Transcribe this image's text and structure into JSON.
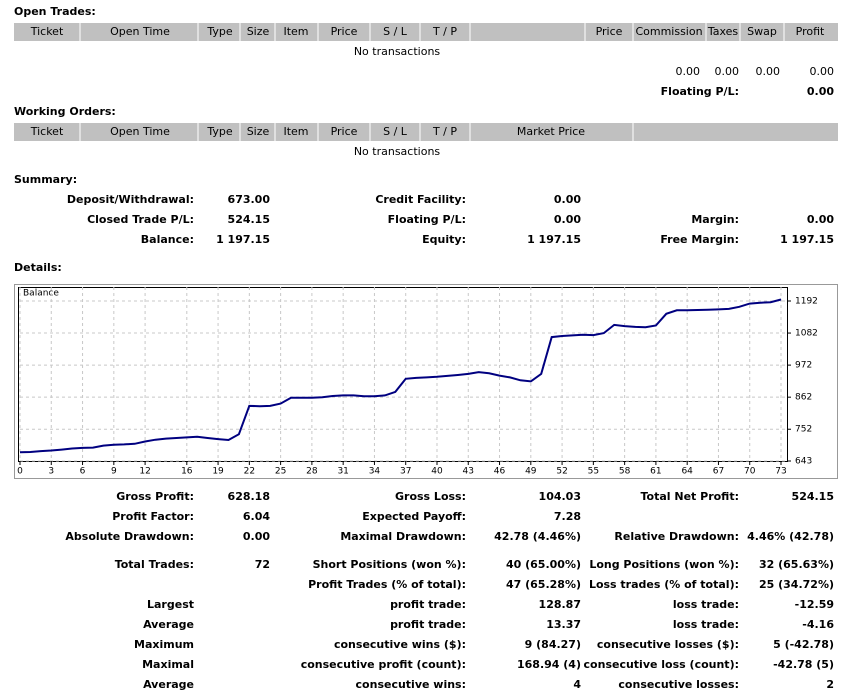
{
  "open_trades": {
    "title": "Open Trades:",
    "columns": [
      "Ticket",
      "Open Time",
      "Type",
      "Size",
      "Item",
      "Price",
      "S / L",
      "T / P",
      "Price",
      "Commission",
      "Taxes",
      "Swap",
      "Profit"
    ],
    "empty": "No transactions",
    "totals": [
      "0.00",
      "0.00",
      "0.00",
      "0.00"
    ],
    "floating_label": "Floating P/L:",
    "floating_value": "0.00"
  },
  "working_orders": {
    "title": "Working Orders:",
    "columns": [
      "Ticket",
      "Open Time",
      "Type",
      "Size",
      "Item",
      "Price",
      "S / L",
      "T / P",
      "Market Price"
    ],
    "empty": "No transactions"
  },
  "summary": {
    "title": "Summary:",
    "rows": [
      {
        "left": {
          "label": "Deposit/Withdrawal:",
          "value": "673.00"
        },
        "middle": {
          "label": "Credit Facility:",
          "value": "0.00"
        }
      },
      {
        "left": {
          "label": "Closed Trade P/L:",
          "value": "524.15"
        },
        "middle": {
          "label": "Floating P/L:",
          "value": "0.00"
        },
        "right": {
          "label": "Margin:",
          "value": "0.00"
        }
      },
      {
        "left": {
          "label": "Balance:",
          "value": "1 197.15"
        },
        "middle": {
          "label": "Equity:",
          "value": "1 197.15"
        },
        "right": {
          "label": "Free Margin:",
          "value": "1 197.15"
        }
      }
    ]
  },
  "details": {
    "title": "Details:",
    "rows": [
      {
        "left": {
          "label": "Gross Profit:",
          "value": "628.18"
        },
        "middle": {
          "label": "Gross Loss:",
          "value": "104.03"
        },
        "right": {
          "label": "Total Net Profit:",
          "value": "524.15"
        }
      },
      {
        "left": {
          "label": "Profit Factor:",
          "value": "6.04"
        },
        "middle": {
          "label": "Expected Payoff:",
          "value": "7.28"
        }
      },
      {
        "left": {
          "label": "Absolute Drawdown:",
          "value": "0.00"
        },
        "middle": {
          "label": "Maximal Drawdown:",
          "value": "42.78 (4.46%)"
        },
        "right": {
          "label": "Relative Drawdown:",
          "value": "4.46% (42.78)"
        }
      },
      {
        "left": {
          "label": "Total Trades:",
          "value": "72"
        },
        "middle": {
          "label": "Short Positions (won %):",
          "value": "40 (65.00%)"
        },
        "right": {
          "label": "Long Positions (won %):",
          "value": "32 (65.63%)"
        }
      },
      {
        "middle": {
          "label": "Profit Trades (% of total):",
          "value": "47 (65.28%)"
        },
        "right": {
          "label": "Loss trades (% of total):",
          "value": "25 (34.72%)"
        }
      },
      {
        "left": {
          "label": "Largest"
        },
        "middle": {
          "label": "profit trade:",
          "value": "128.87"
        },
        "right": {
          "label": "loss trade:",
          "value": "-12.59"
        }
      },
      {
        "left": {
          "label": "Average"
        },
        "middle": {
          "label": "profit trade:",
          "value": "13.37"
        },
        "right": {
          "label": "loss trade:",
          "value": "-4.16"
        }
      },
      {
        "left": {
          "label": "Maximum"
        },
        "middle": {
          "label": "consecutive wins ($):",
          "value": "9 (84.27)"
        },
        "right": {
          "label": "consecutive losses ($):",
          "value": "5 (-42.78)"
        }
      },
      {
        "left": {
          "label": "Maximal"
        },
        "middle": {
          "label": "consecutive profit (count):",
          "value": "168.94 (4)"
        },
        "right": {
          "label": "consecutive loss (count):",
          "value": "-42.78 (5)"
        }
      },
      {
        "left": {
          "label": "Average"
        },
        "middle": {
          "label": "consecutive wins:",
          "value": "4"
        },
        "right": {
          "label": "consecutive losses:",
          "value": "2"
        }
      }
    ]
  },
  "chart_data": {
    "type": "line",
    "title": "Balance",
    "color": "#000080",
    "grid": true,
    "x": [
      0,
      1,
      2,
      3,
      4,
      5,
      6,
      7,
      8,
      9,
      10,
      11,
      12,
      13,
      14,
      15,
      16,
      17,
      18,
      19,
      20,
      21,
      22,
      23,
      24,
      25,
      26,
      27,
      28,
      29,
      30,
      31,
      32,
      33,
      34,
      35,
      36,
      37,
      38,
      39,
      40,
      41,
      42,
      43,
      44,
      45,
      46,
      47,
      48,
      49,
      50,
      51,
      52,
      53,
      54,
      55,
      56,
      57,
      58,
      59,
      60,
      61,
      62,
      63,
      64,
      65,
      66,
      67,
      68,
      69,
      70,
      71,
      72,
      73
    ],
    "values": [
      673,
      674,
      677,
      679,
      682,
      686,
      688,
      689,
      696,
      699,
      700,
      702,
      710,
      716,
      720,
      722,
      724,
      726,
      722,
      718,
      715,
      735,
      832,
      831,
      832,
      840,
      860,
      860,
      860,
      862,
      866,
      868,
      868,
      865,
      865,
      868,
      880,
      925,
      928,
      930,
      932,
      935,
      938,
      942,
      948,
      944,
      936,
      930,
      920,
      916,
      942,
      1068,
      1072,
      1074,
      1076,
      1075,
      1082,
      1110,
      1106,
      1103,
      1102,
      1108,
      1148,
      1160,
      1160,
      1161,
      1162,
      1163,
      1165,
      1172,
      1183,
      1186,
      1188,
      1197
    ],
    "xlim": [
      0,
      73
    ],
    "xticks": [
      0,
      3,
      6,
      9,
      12,
      16,
      19,
      22,
      25,
      28,
      31,
      34,
      37,
      40,
      43,
      46,
      49,
      52,
      55,
      58,
      61,
      64,
      67,
      70,
      73
    ],
    "ylim": [
      643,
      1240
    ],
    "yticks": [
      643,
      752,
      862,
      972,
      1082,
      1192
    ]
  }
}
